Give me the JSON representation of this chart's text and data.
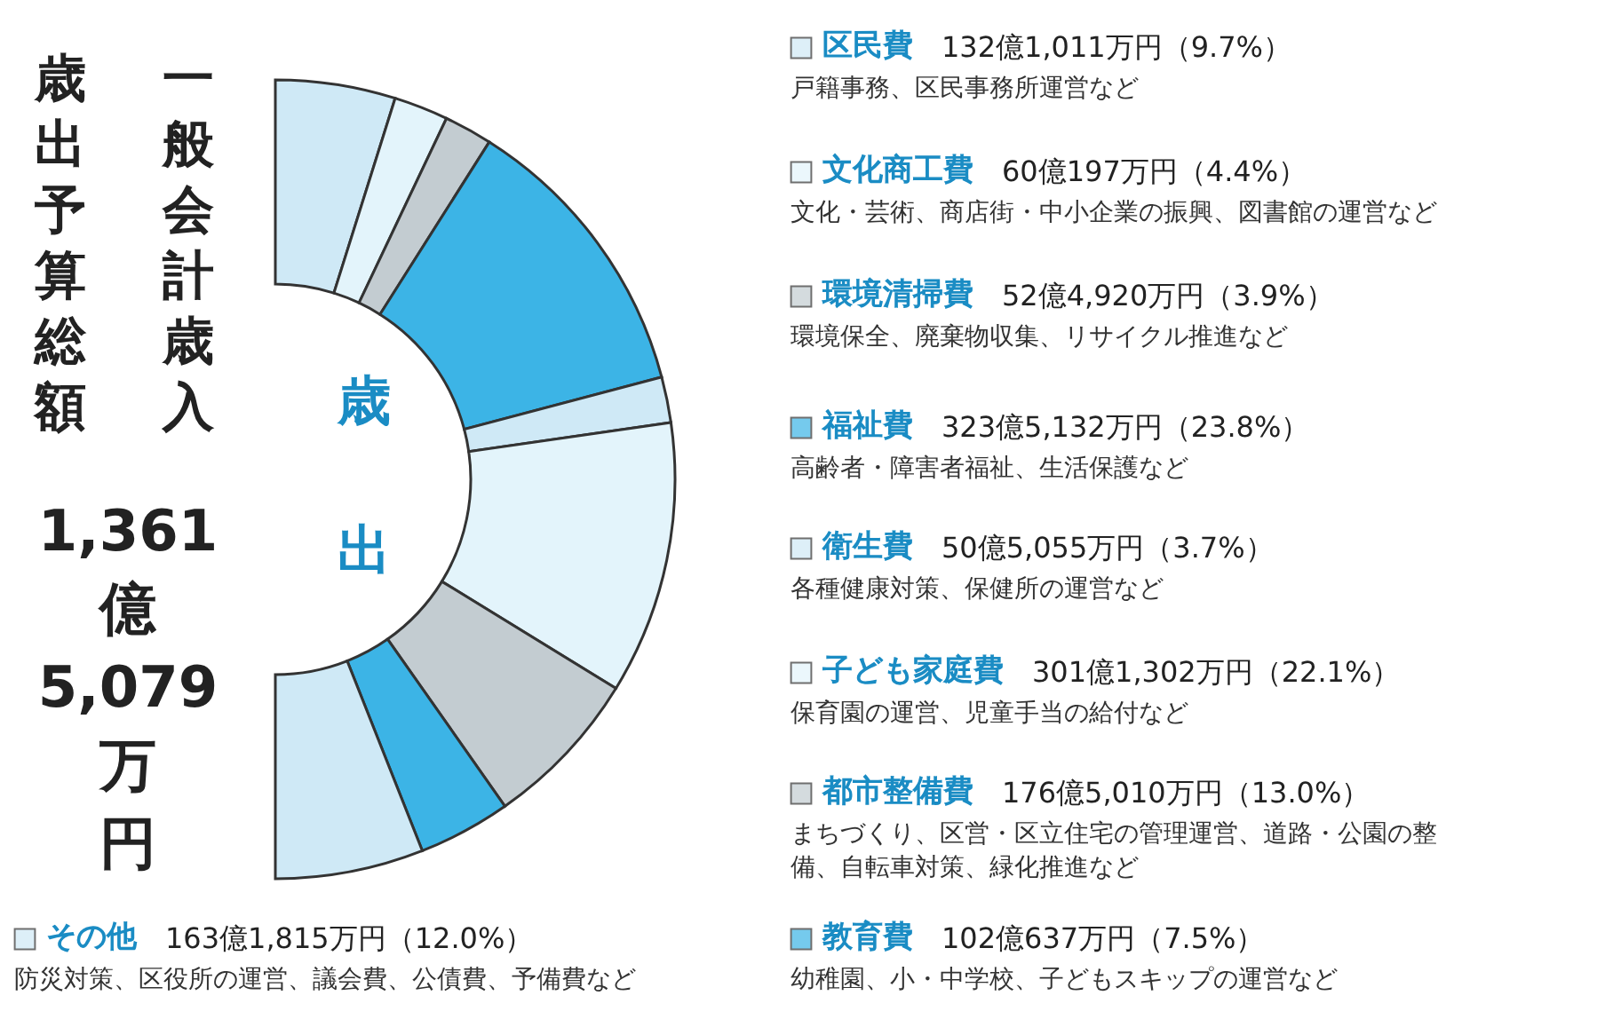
{
  "chart_data": {
    "type": "donut",
    "title": "一般会計歳入歳出予算総額",
    "subtitle": "1,361億5,079万円",
    "categories": [
      "区民費",
      "文化商工費",
      "環境清掃費",
      "福祉費",
      "衛生費",
      "子ども家庭費",
      "都市整備費",
      "教育費",
      "その他"
    ],
    "legend": "right",
    "values": [
      9.7,
      4.4,
      3.9,
      23.8,
      3.7,
      22.1,
      13.0,
      7.5,
      12.0
    ],
    "colors": [
      "#cfe9f6",
      "#e3f4fb",
      "#c3ccd1",
      "#3cb4e6",
      "#cfe9f6",
      "#e3f4fb",
      "#c3ccd1",
      "#3cb4e6",
      "#cfe9f6"
    ],
    "value_labels": [
      "132億1,011万円（9.7%）",
      "60億197万円（4.4%）",
      "52億4,920万円（3.9%）",
      "323億5,132万円（23.8%）",
      "50億5,055万円（3.7%）",
      "301億1,302万円（22.1%）",
      "176億5,010万円（13.0%）",
      "102億637万円（7.5%）",
      "163億1,815万円（12.0%）"
    ],
    "annotations": [
      "戸籍事務、区民事務所運営など",
      "文化・芸術、商店街・中小企業の振興、図書館の運営など",
      "環境保全、廃棄物収集、リサイクル推進など",
      "高齢者・障害者福祉、生活保護など",
      "各種健康対策、保健所の運営など",
      "保育園の運営、児童手当の給付など",
      "まちづくり、区営・区立住宅の管理運営、道路・公園の整備、自転車対策、緑化推進など",
      "幼稚園、小・中学校、子どもスキップの運営など",
      "防災対策、区役所の運営、議会費、公債費、予備費など",
      "歳出"
    ]
  }
}
